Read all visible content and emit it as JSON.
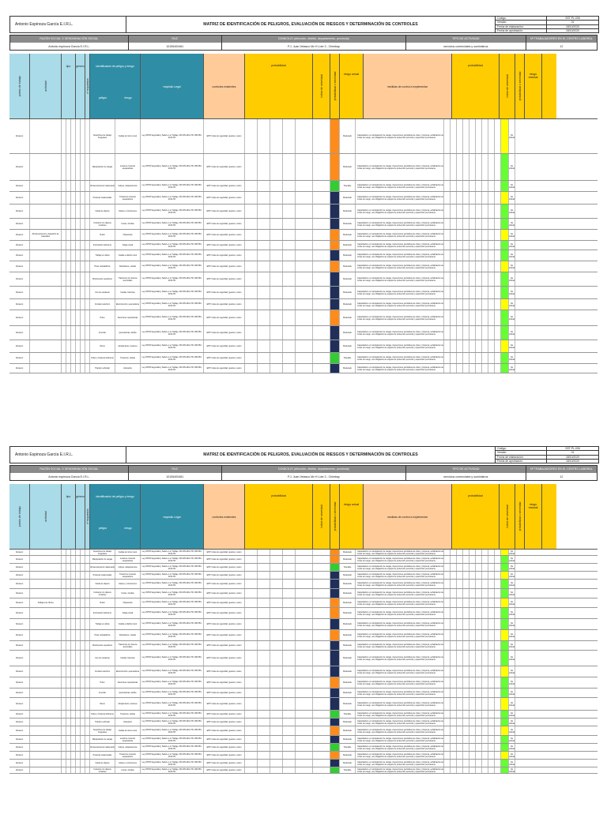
{
  "header": {
    "company": "Antonio Espinoza García E.I.R.L.",
    "title": "MATRIZ DE IDENTIFICACIÓN DE PELIGROS, EVALUACIÓN DE RIESGOS Y DETERMINACIÓN DE CONTROLES",
    "codes": [
      {
        "k": "Código:",
        "v": "SST-PL-006"
      },
      {
        "k": "Versión:",
        "v": "01"
      },
      {
        "k": "Fecha de elaboración:",
        "v": "18/10/2020"
      },
      {
        "k": "Fecha de aprobación:",
        "v": "18/10/2020"
      }
    ]
  },
  "info": {
    "razon_label": "RAZÓN SOCIAL O DENOMINACIÓN SOCIAL",
    "razon_value": "Antonio espinoza García E.I.R.L.",
    "ruc_label": "RUC",
    "ruc_value": "10155400481",
    "dom_label": "DOMICILIO (dirección, distrito, departamento, provincia)",
    "dom_value": "P.J. Juan Velasco Mz H Lote 3 - Chimbay",
    "tipo_label": "TIPO DE ACTIVIDAD",
    "tipo_value": "servicios comerciales y suministros",
    "ntrab_label": "Nº TRABAJADORES EN EL CENTRO LABORAL",
    "ntrab_value": "12"
  },
  "columns": {
    "puesto": "puesto de trabajo",
    "actividad": "actividad",
    "tipo": "tipo",
    "tipo_sub": [
      "actividad rutinaria",
      "actividad no rutinaria",
      "emergencia"
    ],
    "genero": "género",
    "genero_sub": [
      "hombre",
      "mujer"
    ],
    "expuestos": "nº expuestos",
    "ident": "identificación de peligro y riesgo",
    "peligro": "peligro",
    "riesgo": "riesgo",
    "requisito": "requisito Legal",
    "controles": "controles existentes",
    "probabilidad": "probabilidad",
    "prob_sub": [
      "índice de personas expuestas (A)",
      "índice de procedimientos existentes (B)",
      "índice de capacitación (C)",
      "índice de exposición al riesgo (D)",
      "índice de probabilidad (A+B+C+D)"
    ],
    "severidad": "índice de severidad",
    "pxs": "probabilidad x severidad",
    "riesgo_actual": "riesgo actual",
    "nivel_riesgo": "nivel de riesgo",
    "significativo": "riesgo significativo (Si/No)",
    "medidas": "medidas de control a implementar",
    "prob2": "probabilidad",
    "riesgo_residual": "riesgo residual"
  },
  "row_labels": {
    "puesto": "Almacén",
    "actividad_p1": "Almacenamiento y despacho de materiales",
    "actividad_p2": "Trabajos de oficina",
    "significativo": "Significativo",
    "no_sig": "No significativo",
    "nivel_mod": "Moderado",
    "nivel_imp": "Importante",
    "nivel_tol": "Tolerable",
    "peligros": [
      "Superficies de trabajo irregulares",
      "Manipulación de cargas",
      "Almacenamiento inadecuado",
      "Posturas inadecuadas",
      "Caída de objetos",
      "Contacto con objetos cortantes",
      "Ruido",
      "Iluminación deficiente",
      "Trabajo en altura",
      "Pisos resbaladizos",
      "Movimientos repetitivos",
      "Uso de escaleras",
      "Contacto eléctrico",
      "Polvo",
      "Incendio",
      "Sismo",
      "Orden y limpieza deficiente",
      "Tránsito vehicular"
    ],
    "riesgos": [
      "Caídas al mismo nivel",
      "Lesiones músculo esqueléticas",
      "Golpes, atrapamientos",
      "Trastornos músculo esqueléticos",
      "Golpes y contusiones",
      "Cortes, heridas",
      "Hipoacusia",
      "Fatiga visual",
      "Caídas a distinto nivel",
      "Resbalones, caídas",
      "Trastornos por trauma acumulado",
      "Caídas, fracturas",
      "Electrocución, quemaduras",
      "Afecciones respiratorias",
      "Quemaduras, asfixia",
      "Atrapamiento, lesiones",
      "Tropiezos, caídas",
      "Atropellos"
    ],
    "requisito": "Ley 29783 Seguridad y Salud en el Trabajo, DS 005-2012-TR, RM 050-2013-TR",
    "control": "EPP: botas de seguridad, guantes, casco",
    "medida": "Capacitación en manipulación de cargas, inspecciones periódicas de orden y limpieza, señalización de zonas de riesgo, uso obligatorio de equipos de protección personal y supervisión permanente."
  },
  "colors": {
    "header_blue": "#a9dbe8",
    "header_teal": "#2f8ea6",
    "header_yellow": "#ffcc00",
    "header_orange": "#ffcc99",
    "risk_orange": "#ff8c1a",
    "risk_green": "#33cc33",
    "risk_navy": "#1f2f5a",
    "res_green": "#66ff33",
    "res_yellow": "#ffff00"
  }
}
